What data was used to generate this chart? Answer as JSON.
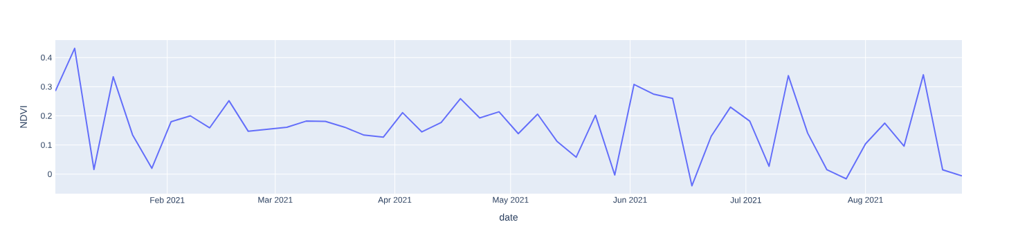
{
  "chart_data": {
    "type": "line",
    "xlabel": "date",
    "ylabel": "NDVI",
    "color": "#636efa",
    "grid": true,
    "x": [
      "2021-01-03",
      "2021-01-08",
      "2021-01-13",
      "2021-01-18",
      "2021-01-23",
      "2021-01-28",
      "2021-02-02",
      "2021-02-07",
      "2021-02-12",
      "2021-02-17",
      "2021-02-22",
      "2021-03-04",
      "2021-03-09",
      "2021-03-14",
      "2021-03-19",
      "2021-03-24",
      "2021-03-29",
      "2021-04-03",
      "2021-04-08",
      "2021-04-13",
      "2021-04-18",
      "2021-04-23",
      "2021-04-28",
      "2021-05-03",
      "2021-05-08",
      "2021-05-13",
      "2021-05-18",
      "2021-05-23",
      "2021-05-28",
      "2021-06-02",
      "2021-06-07",
      "2021-06-12",
      "2021-06-17",
      "2021-06-22",
      "2021-06-27",
      "2021-07-02",
      "2021-07-07",
      "2021-07-12",
      "2021-07-17",
      "2021-07-22",
      "2021-07-27",
      "2021-08-01",
      "2021-08-06",
      "2021-08-11",
      "2021-08-16",
      "2021-08-21",
      "2021-08-26"
    ],
    "values": [
      0.285,
      0.432,
      0.016,
      0.334,
      0.135,
      0.02,
      0.18,
      0.2,
      0.159,
      0.252,
      0.147,
      0.161,
      0.182,
      0.181,
      0.161,
      0.134,
      0.127,
      0.211,
      0.145,
      0.177,
      0.259,
      0.193,
      0.214,
      0.139,
      0.206,
      0.113,
      0.058,
      0.202,
      -0.003,
      0.308,
      0.275,
      0.26,
      -0.04,
      0.13,
      0.23,
      0.182,
      0.027,
      0.338,
      0.141,
      0.015,
      -0.016,
      0.104,
      0.175,
      0.096,
      0.341,
      0.015,
      -0.006
    ],
    "xlim": [
      "2021-01-03",
      "2021-08-26"
    ],
    "ylim": [
      -0.067,
      0.46
    ],
    "xticks": [
      {
        "value": "2021-02-01",
        "label": "Feb 2021"
      },
      {
        "value": "2021-03-01",
        "label": "Mar 2021"
      },
      {
        "value": "2021-04-01",
        "label": "Apr 2021"
      },
      {
        "value": "2021-05-01",
        "label": "May 2021"
      },
      {
        "value": "2021-06-01",
        "label": "Jun 2021"
      },
      {
        "value": "2021-07-01",
        "label": "Jul 2021"
      },
      {
        "value": "2021-08-01",
        "label": "Aug 2021"
      }
    ],
    "yticks": [
      0,
      0.1,
      0.2,
      0.3,
      0.4
    ]
  }
}
